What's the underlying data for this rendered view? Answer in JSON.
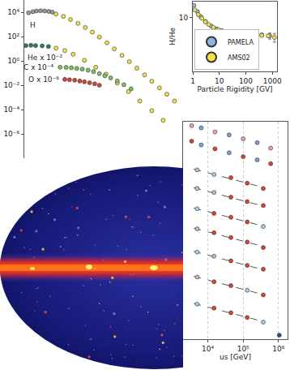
{
  "chart_data": [
    {
      "type": "scatter",
      "log": true,
      "tick_labels": "y",
      "grid": false,
      "xlim": [
        0.1,
        1700
      ],
      "ylim": [
        1e-08,
        100000
      ],
      "yticks": [
        {
          "value": 10000,
          "label": "10⁴"
        },
        {
          "value": 100,
          "label": "10²"
        },
        {
          "value": 1,
          "label": "10⁰"
        },
        {
          "value": 0.01,
          "label": "10⁻²"
        },
        {
          "value": 0.0001,
          "label": "10⁻⁴"
        },
        {
          "value": 1e-06,
          "label": "10⁻⁶"
        }
      ],
      "series": [
        {
          "name": "H",
          "x": [
            0.13,
            0.17,
            0.21,
            0.27,
            0.35,
            0.45,
            0.56,
            0.7,
            1.1,
            1.7,
            2.7,
            4.2,
            6.5,
            10,
            16,
            25,
            40,
            63,
            100,
            160,
            250,
            400,
            630,
            1000
          ],
          "values": [
            9000,
            11000,
            12500,
            13000,
            12500,
            11500,
            10000,
            7000,
            4500,
            2500,
            1200,
            550,
            230,
            90,
            30,
            9.5,
            2.8,
            0.85,
            0.25,
            0.07,
            0.021,
            0.006,
            0.0018,
            0.0005
          ],
          "colors": [
            "#9a9a9a",
            "#9a9a9a",
            "#9a9a9a",
            "#9a9a9a",
            "#9a9a9a",
            "#9a9a9a",
            "#9a9a9a",
            "#f2e24a",
            "#f2e24a",
            "#f2e24a",
            "#f2e24a",
            "#f2e24a",
            "#f2e24a",
            "#f2e24a",
            "#f2e24a",
            "#f2e24a",
            "#f2e24a",
            "#f2e24a",
            "#f2e24a",
            "#f2e24a",
            "#f2e24a",
            "#f2e24a",
            "#f2e24a",
            "#f2e24a"
          ]
        },
        {
          "name": "He x 10⁻²",
          "x": [
            0.11,
            0.15,
            0.2,
            0.3,
            0.44,
            0.7,
            1.2,
            2,
            4,
            8,
            15,
            30,
            60,
            120,
            250,
            500
          ],
          "values": [
            18,
            19,
            18,
            17,
            15,
            11,
            7,
            3.5,
            1.1,
            0.3,
            0.08,
            0.015,
            0.003,
            0.0005,
            8e-05,
            1.3e-05
          ],
          "colors": [
            "#2f7f5f",
            "#2f7f5f",
            "#2f7f5f",
            "#2f7f5f",
            "#2f7f5f",
            "#f2e24a",
            "#f2e24a",
            "#f2e24a",
            "#f2e24a",
            "#f2e24a",
            "#f2e24a",
            "#f2e24a",
            "#f2e24a",
            "#f2e24a",
            "#f2e24a",
            "#f2e24a"
          ]
        },
        {
          "name": "C x 10⁻⁴",
          "color": "#7cc35a",
          "x": [
            0.9,
            1.3,
            1.8,
            2.5,
            3.5,
            5,
            7,
            10,
            14,
            20,
            30,
            45,
            70
          ],
          "values": [
            0.3,
            0.29,
            0.27,
            0.24,
            0.21,
            0.17,
            0.13,
            0.09,
            0.06,
            0.04,
            0.022,
            0.011,
            0.005
          ]
        },
        {
          "name": "O x 10⁻⁶",
          "color": "#d9443a",
          "x": [
            1.2,
            1.6,
            2.2,
            3,
            4,
            5.5,
            7.5,
            10
          ],
          "values": [
            0.03,
            0.028,
            0.026,
            0.022,
            0.019,
            0.016,
            0.013,
            0.01
          ]
        }
      ]
    },
    {
      "type": "scatter",
      "log": true,
      "grid": false,
      "legend": "lower left",
      "xlabel": "Particle Rigidity [GV]",
      "ylabel": "H/He",
      "xlim": [
        1,
        1500
      ],
      "ylim": [
        1,
        20
      ],
      "xticks": [
        1,
        10,
        100,
        1000
      ],
      "yticks": [
        10
      ],
      "series": [
        {
          "name": "PAMELA",
          "color": "#8fb4e0",
          "x": [
            1.1,
            1.5,
            2,
            3,
            5,
            8,
            12,
            20,
            35,
            60,
            100,
            200,
            400,
            800
          ],
          "values": [
            17,
            13,
            10.5,
            8.5,
            7,
            6.2,
            5.8,
            5.5,
            5.3,
            5.1,
            5,
            4.9,
            4.8,
            4.6
          ],
          "errors": [
            0.3,
            0.2,
            0.15,
            0.1,
            0.08,
            0.06,
            0.05,
            0.05,
            0.05,
            0.06,
            0.08,
            0.15,
            0.3,
            0.6
          ]
        },
        {
          "name": "AMS02",
          "color": "#f2e24a",
          "x": [
            1.2,
            1.6,
            2.2,
            3,
            4,
            6,
            9,
            14,
            22,
            35,
            55,
            90,
            150,
            250,
            400,
            700,
            1200
          ],
          "values": [
            14,
            11.5,
            9.8,
            8.4,
            7.5,
            6.6,
            6,
            5.6,
            5.4,
            5.2,
            5.1,
            5,
            4.9,
            4.8,
            4.7,
            4.6,
            4.3
          ],
          "errors": [
            0.3,
            0.25,
            0.2,
            0.15,
            0.1,
            0.08,
            0.06,
            0.05,
            0.05,
            0.05,
            0.05,
            0.06,
            0.08,
            0.1,
            0.15,
            0.3,
            0.8
          ]
        }
      ]
    },
    {
      "type": "scatter",
      "log": true,
      "grid": true,
      "tick_labels": "x",
      "xlabel": "us [GeV]",
      "xlim": [
        2000,
        1800000
      ],
      "ylim": [
        1e-14,
        1
      ],
      "xticks": [
        {
          "value": 10000,
          "label": "10⁴"
        },
        {
          "value": 100000,
          "label": "10⁵"
        },
        {
          "value": 1000000,
          "label": "10⁶"
        }
      ],
      "series": [
        {
          "x": [
            3500,
            6500,
            16000,
            40000,
            100000,
            250000,
            600000
          ],
          "values": [
            0.56,
            0.4,
            0.22,
            0.14,
            0.079,
            0.045,
            0.02
          ],
          "colors": [
            "#e9a3b5",
            "#7d9fd8",
            "#e9a3b5",
            "#7d9fd8",
            "#e9a3b5",
            "#7d9fd8",
            "#e9a3b5"
          ]
        },
        {
          "x": [
            3500,
            6500,
            16000,
            40000,
            100000,
            250000,
            600000
          ],
          "values": [
            0.056,
            0.032,
            0.018,
            0.01,
            0.0056,
            0.0035,
            0.002
          ],
          "colors": [
            "#d9443a",
            "#7d9fd8",
            "#d9443a",
            "#7d9fd8",
            "#d9443a",
            "#7d9fd8",
            "#d9443a"
          ]
        },
        {
          "type": "line",
          "line_style": "dashed",
          "color": "#555555",
          "x": [
            4000,
            400000
          ],
          "values": [
            0.00089,
            5.6e-05
          ]
        },
        {
          "x": [
            5000,
            15000,
            45000,
            130000,
            370000
          ],
          "values": [
            0.00079,
            0.0004,
            0.00025,
            0.00011,
            5e-05
          ],
          "colors": [
            "#bdbdbd",
            "#a8cce8",
            "#d9443a",
            "#d9443a",
            "#d9443a"
          ]
        },
        {
          "type": "line",
          "line_style": "dashed",
          "color": "#555555",
          "x": [
            4000,
            400000
          ],
          "values": [
            5.6e-05,
            3.5e-06
          ]
        },
        {
          "x": [
            5000,
            15000,
            45000,
            130000,
            370000
          ],
          "values": [
            5e-05,
            2.8e-05,
            1.4e-05,
            7.1e-06,
            4e-06
          ],
          "colors": [
            "#bdbdbd",
            "#bdbdbd",
            "#d9443a",
            "#d9443a",
            "#d9443a"
          ]
        },
        {
          "type": "line",
          "line_style": "dashed",
          "color": "#555555",
          "x": [
            4000,
            400000
          ],
          "values": [
            2.8e-06,
            1.8e-07
          ]
        },
        {
          "x": [
            5000,
            15000,
            45000,
            130000,
            370000
          ],
          "values": [
            2.5e-06,
            1.26e-06,
            7.1e-07,
            3.5e-07,
            1.8e-07
          ],
          "colors": [
            "#a8cce8",
            "#d9443a",
            "#d9443a",
            "#d9443a",
            "#a8cce8"
          ]
        },
        {
          "type": "line",
          "line_style": "dashed",
          "color": "#555555",
          "x": [
            4000,
            400000
          ],
          "values": [
            1.4e-07,
            8.9e-09
          ]
        },
        {
          "x": [
            5000,
            15000,
            45000,
            130000,
            370000
          ],
          "values": [
            1.26e-07,
            7.1e-08,
            3.5e-08,
            1.8e-08,
            7.9e-09
          ],
          "colors": [
            "#bdbdbd",
            "#d9443a",
            "#d9443a",
            "#d9443a",
            "#d9443a"
          ]
        },
        {
          "type": "line",
          "line_style": "dashed",
          "color": "#555555",
          "x": [
            4000,
            400000
          ],
          "values": [
            4.5e-09,
            2.8e-10
          ]
        },
        {
          "x": [
            5000,
            15000,
            45000,
            130000,
            370000
          ],
          "values": [
            4e-09,
            2.2e-09,
            1.1e-09,
            5.6e-10,
            3.2e-10
          ],
          "colors": [
            "#a8cce8",
            "#bdbdbd",
            "#d9443a",
            "#d9443a",
            "#d9443a"
          ]
        },
        {
          "type": "line",
          "line_style": "dashed",
          "color": "#555555",
          "x": [
            4000,
            400000
          ],
          "values": [
            1.1e-10,
            7.1e-12
          ]
        },
        {
          "x": [
            5000,
            15000,
            45000,
            130000,
            370000
          ],
          "values": [
            1e-10,
            5e-11,
            2.8e-11,
            1.4e-11,
            7.1e-12
          ],
          "colors": [
            "#bdbdbd",
            "#d9443a",
            "#d9443a",
            "#a8cce8",
            "#d9443a"
          ]
        },
        {
          "type": "line",
          "line_style": "dashed",
          "color": "#555555",
          "x": [
            4000,
            400000
          ],
          "values": [
            2e-12,
            1.3e-13
          ]
        },
        {
          "x": [
            5000,
            15000,
            45000,
            130000,
            370000,
            1050000
          ],
          "values": [
            1.8e-12,
            1e-12,
            5e-13,
            2.5e-13,
            1.26e-13,
            1.8e-14
          ],
          "colors": [
            "#a8cce8",
            "#d9443a",
            "#d9443a",
            "#d9443a",
            "#a8cce8",
            "#2f4f8f"
          ]
        }
      ]
    }
  ]
}
